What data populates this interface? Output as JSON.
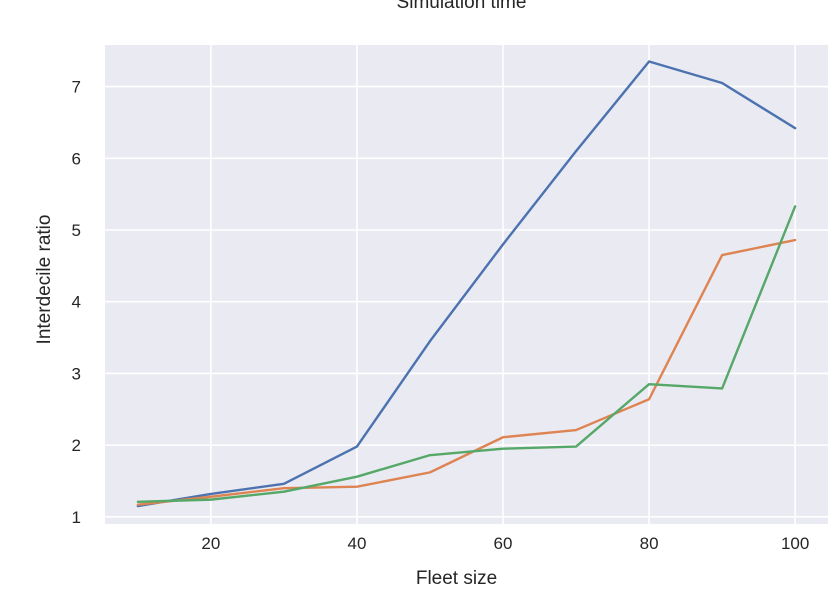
{
  "chart_data": {
    "type": "line",
    "title": "Simulation time",
    "xlabel": "Fleet size",
    "ylabel": "Interdecile ratio",
    "xlim": [
      5.5,
      104.5
    ],
    "ylim": [
      0.9,
      7.58
    ],
    "xticks": [
      20,
      40,
      60,
      80,
      100
    ],
    "yticks": [
      1,
      2,
      3,
      4,
      5,
      6,
      7
    ],
    "grid": true,
    "background": "#eaeaf2",
    "grid_color": "#ffffff",
    "x": [
      10,
      20,
      30,
      40,
      50,
      60,
      70,
      80,
      90,
      100
    ],
    "series": [
      {
        "color": "#4c72b0",
        "values": [
          1.15,
          1.32,
          1.46,
          1.98,
          3.45,
          4.8,
          6.1,
          7.35,
          7.05,
          6.42
        ]
      },
      {
        "color": "#dd8452",
        "values": [
          1.17,
          1.28,
          1.4,
          1.42,
          1.62,
          2.11,
          2.21,
          2.64,
          4.65,
          4.86
        ]
      },
      {
        "color": "#55a868",
        "values": [
          1.21,
          1.24,
          1.35,
          1.56,
          1.86,
          1.95,
          1.98,
          2.85,
          2.79,
          5.33
        ]
      }
    ]
  }
}
